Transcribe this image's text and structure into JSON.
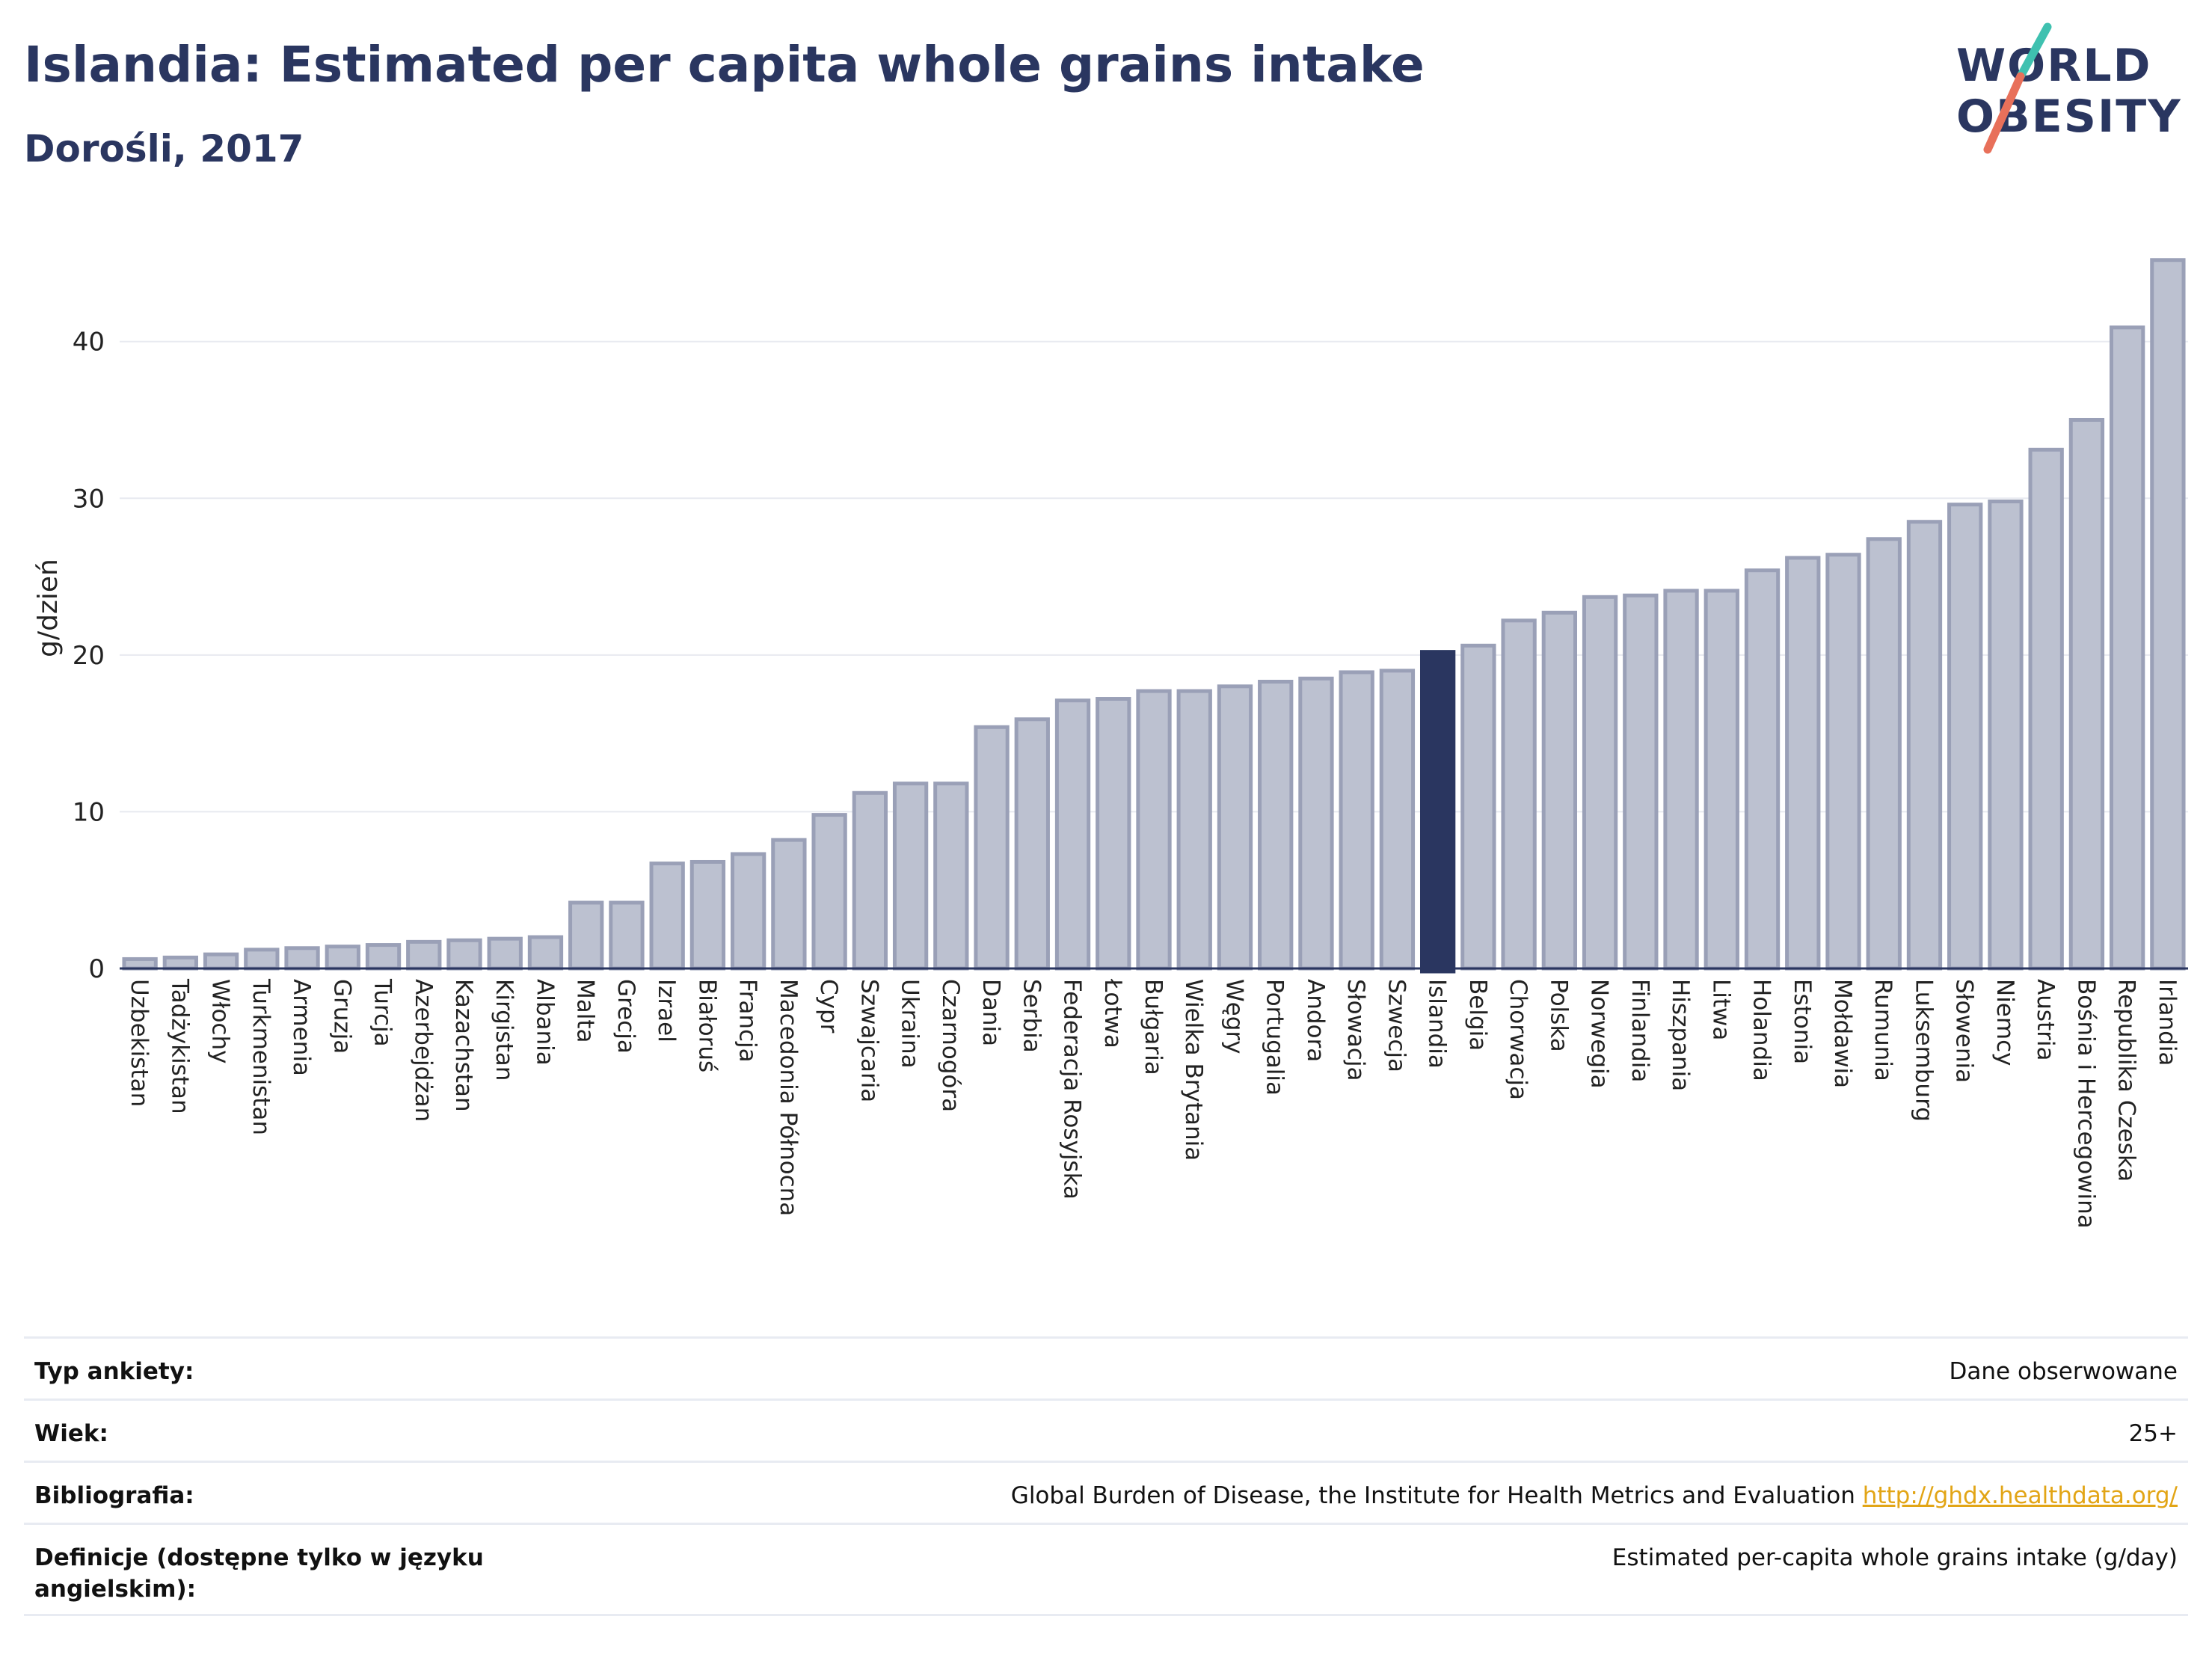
{
  "header": {
    "title": "Islandia: Estimated per capita whole grains intake",
    "subtitle": "Dorośli, 2017"
  },
  "logo": {
    "line1": "WORLD",
    "line2": "OBESITY",
    "slash_colors": [
      "#3fc1b0",
      "#e8705a"
    ]
  },
  "chart_data": {
    "type": "bar",
    "ylabel": "g/dzień",
    "ylim": [
      0,
      47
    ],
    "yticks": [
      0,
      10,
      20,
      30,
      40
    ],
    "grid": true,
    "highlight": "Islandia",
    "colors": {
      "bar": "#bcc1d0",
      "bar_edge": "#9aa0b7",
      "highlight": "#2a3660"
    },
    "categories": [
      "Uzbekistan",
      "Tadżykistan",
      "Włochy",
      "Turkmenistan",
      "Armenia",
      "Gruzja",
      "Turcja",
      "Azerbejdżan",
      "Kazachstan",
      "Kirgistan",
      "Albania",
      "Malta",
      "Grecja",
      "Izrael",
      "Białoruś",
      "Francja",
      "Macedonia Północna",
      "Cypr",
      "Szwajcaria",
      "Ukraina",
      "Czarnogóra",
      "Dania",
      "Serbia",
      "Federacja Rosyjska",
      "Łotwa",
      "Bułgaria",
      "Wielka Brytania",
      "Węgry",
      "Portugalia",
      "Andora",
      "Słowacja",
      "Szwecja",
      "Islandia",
      "Belgia",
      "Chorwacja",
      "Polska",
      "Norwegia",
      "Finlandia",
      "Hiszpania",
      "Litwa",
      "Holandia",
      "Estonia",
      "Mołdawia",
      "Rumunia",
      "Luksemburg",
      "Słowenia",
      "Niemcy",
      "Austria",
      "Bośnia i Hercegowina",
      "Republika Czeska",
      "Irlandia"
    ],
    "values": [
      0.6,
      0.7,
      0.9,
      1.2,
      1.3,
      1.4,
      1.5,
      1.7,
      1.8,
      1.9,
      2.0,
      4.2,
      4.2,
      6.7,
      6.8,
      7.3,
      8.2,
      9.8,
      11.2,
      11.8,
      11.8,
      15.4,
      15.9,
      17.1,
      17.2,
      17.7,
      17.7,
      18.0,
      18.3,
      18.5,
      18.9,
      19.0,
      20.2,
      20.6,
      22.2,
      22.7,
      23.7,
      23.8,
      24.1,
      24.1,
      25.4,
      26.2,
      26.4,
      27.4,
      28.5,
      29.6,
      29.8,
      33.1,
      35.0,
      40.9,
      45.2
    ]
  },
  "meta": {
    "rows": [
      {
        "key": "Typ ankiety:",
        "value": "Dane obserwowane"
      },
      {
        "key": "Wiek:",
        "value": "25+"
      },
      {
        "key": "Bibliografia:",
        "value": "Global Burden of Disease, the Institute for Health Metrics and Evaluation",
        "link": "http://ghdx.healthdata.org/"
      },
      {
        "key": "Definicje (dostępne tylko w języku angielskim):",
        "value": "Estimated per-capita whole grains intake (g/day)"
      }
    ]
  }
}
